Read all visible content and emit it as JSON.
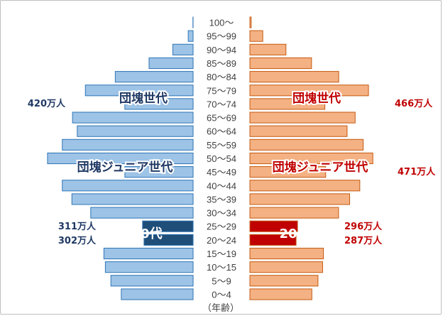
{
  "chart_data": {
    "type": "bar",
    "orientation": "horizontal-butterfly",
    "categories": [
      "100～",
      "95～99",
      "90～94",
      "85～89",
      "80～84",
      "75～79",
      "70～74",
      "65～69",
      "60～64",
      "55～59",
      "50～54",
      "45～49",
      "40～44",
      "35～39",
      "30～34",
      "25～29",
      "20～24",
      "15～19",
      "10～15",
      "5～9",
      "0～4"
    ],
    "series": [
      {
        "side": "left",
        "color": "#9dc3e6",
        "highlight_color": "#1f4e79",
        "values": [
          1,
          30,
          125,
          271,
          479,
          663,
          420,
          742,
          713,
          805,
          896,
          420,
          805,
          746,
          630,
          311,
          302,
          549,
          540,
          506,
          442
        ]
      },
      {
        "side": "right",
        "color": "#f4b183",
        "highlight_color": "#c00000",
        "values": [
          8,
          80,
          224,
          383,
          552,
          737,
          466,
          654,
          604,
          704,
          764,
          471,
          683,
          620,
          551,
          296,
          287,
          457,
          452,
          423,
          385
        ]
      }
    ],
    "highlight_categories": [
      "25～29",
      "20～24"
    ],
    "value_labels": {
      "left_70_74": "420万人",
      "right_70_74": "466万人",
      "right_45_49": "471万人",
      "left_25_29": "311万人",
      "left_20_24": "302万人",
      "right_25_29": "296万人",
      "right_20_24": "287万人"
    },
    "annotations": {
      "dankai": "団塊世代",
      "dankai_junior": "団塊ジュニア世代",
      "twenties": "20代"
    },
    "xlabel": "（年齢）",
    "annotation_colors": {
      "left": "#1f3864",
      "right": "#c00000"
    }
  }
}
